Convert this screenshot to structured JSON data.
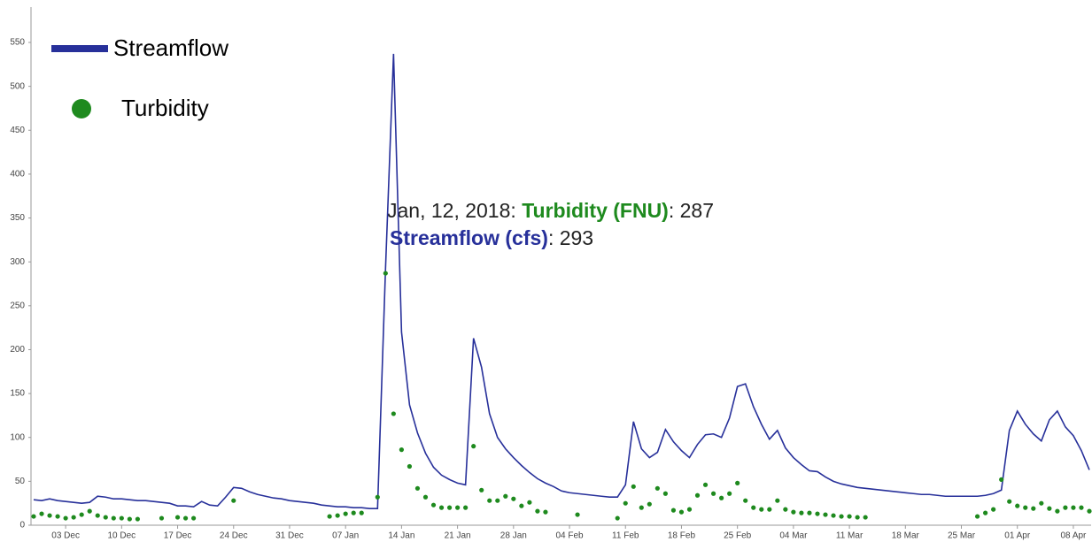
{
  "chart_data": {
    "type": "line",
    "x": [
      "2017-11-29",
      "2017-11-30",
      "2017-12-01",
      "2017-12-02",
      "2017-12-03",
      "2017-12-04",
      "2017-12-05",
      "2017-12-06",
      "2017-12-07",
      "2017-12-08",
      "2017-12-09",
      "2017-12-10",
      "2017-12-11",
      "2017-12-12",
      "2017-12-13",
      "2017-12-14",
      "2017-12-15",
      "2017-12-16",
      "2017-12-17",
      "2017-12-18",
      "2017-12-19",
      "2017-12-20",
      "2017-12-21",
      "2017-12-22",
      "2017-12-23",
      "2017-12-24",
      "2017-12-25",
      "2017-12-26",
      "2017-12-27",
      "2017-12-28",
      "2017-12-29",
      "2017-12-30",
      "2017-12-31",
      "2018-01-01",
      "2018-01-02",
      "2018-01-03",
      "2018-01-04",
      "2018-01-05",
      "2018-01-06",
      "2018-01-07",
      "2018-01-08",
      "2018-01-09",
      "2018-01-10",
      "2018-01-11",
      "2018-01-12",
      "2018-01-13",
      "2018-01-14",
      "2018-01-15",
      "2018-01-16",
      "2018-01-17",
      "2018-01-18",
      "2018-01-19",
      "2018-01-20",
      "2018-01-21",
      "2018-01-22",
      "2018-01-23",
      "2018-01-24",
      "2018-01-25",
      "2018-01-26",
      "2018-01-27",
      "2018-01-28",
      "2018-01-29",
      "2018-01-30",
      "2018-01-31",
      "2018-02-01",
      "2018-02-02",
      "2018-02-03",
      "2018-02-04",
      "2018-02-05",
      "2018-02-06",
      "2018-02-07",
      "2018-02-08",
      "2018-02-09",
      "2018-02-10",
      "2018-02-11",
      "2018-02-12",
      "2018-02-13",
      "2018-02-14",
      "2018-02-15",
      "2018-02-16",
      "2018-02-17",
      "2018-02-18",
      "2018-02-19",
      "2018-02-20",
      "2018-02-21",
      "2018-02-22",
      "2018-02-23",
      "2018-02-24",
      "2018-02-25",
      "2018-02-26",
      "2018-02-27",
      "2018-02-28",
      "2018-03-01",
      "2018-03-02",
      "2018-03-03",
      "2018-03-04",
      "2018-03-05",
      "2018-03-06",
      "2018-03-07",
      "2018-03-08",
      "2018-03-09",
      "2018-03-10",
      "2018-03-11",
      "2018-03-12",
      "2018-03-13",
      "2018-03-14",
      "2018-03-15",
      "2018-03-16",
      "2018-03-17",
      "2018-03-18",
      "2018-03-19",
      "2018-03-20",
      "2018-03-21",
      "2018-03-22",
      "2018-03-23",
      "2018-03-24",
      "2018-03-25",
      "2018-03-26",
      "2018-03-27",
      "2018-03-28",
      "2018-03-29",
      "2018-03-30",
      "2018-03-31",
      "2018-04-01",
      "2018-04-02",
      "2018-04-03",
      "2018-04-04",
      "2018-04-05",
      "2018-04-06",
      "2018-04-07",
      "2018-04-08",
      "2018-04-09",
      "2018-04-10"
    ],
    "series": [
      {
        "name": "Streamflow",
        "color": "#27309a",
        "style": "line",
        "values": [
          29,
          28,
          30,
          28,
          27,
          26,
          25,
          26,
          33,
          32,
          30,
          30,
          29,
          28,
          28,
          27,
          26,
          25,
          22,
          22,
          21,
          27,
          23,
          22,
          32,
          43,
          42,
          38,
          35,
          33,
          31,
          30,
          28,
          27,
          26,
          25,
          23,
          22,
          21,
          21,
          20,
          20,
          19,
          19,
          293,
          537,
          220,
          137,
          105,
          82,
          66,
          57,
          52,
          48,
          46,
          213,
          180,
          127,
          100,
          87,
          77,
          68,
          60,
          53,
          48,
          44,
          39,
          37,
          36,
          35,
          34,
          33,
          32,
          32,
          46,
          118,
          87,
          77,
          83,
          109,
          95,
          85,
          77,
          92,
          103,
          104,
          100,
          122,
          158,
          161,
          135,
          115,
          98,
          108,
          88,
          77,
          69,
          62,
          61,
          55,
          50,
          47,
          45,
          43,
          42,
          41,
          40,
          39,
          38,
          37,
          36,
          35,
          35,
          34,
          33,
          33,
          33,
          33,
          33,
          34,
          36,
          40,
          108,
          130,
          115,
          104,
          96,
          120,
          130,
          112,
          102,
          85,
          63
        ]
      },
      {
        "name": "Turbidity",
        "color": "#1e8a1e",
        "style": "markers",
        "values": [
          10,
          13,
          11,
          10,
          8,
          9,
          12,
          16,
          11,
          9,
          8,
          8,
          7,
          7,
          null,
          null,
          8,
          null,
          9,
          8,
          8,
          null,
          null,
          null,
          null,
          28,
          null,
          null,
          null,
          null,
          null,
          null,
          null,
          null,
          null,
          null,
          null,
          10,
          11,
          13,
          14,
          14,
          null,
          32,
          287,
          127,
          86,
          67,
          42,
          32,
          23,
          20,
          20,
          20,
          20,
          90,
          40,
          28,
          28,
          33,
          30,
          22,
          26,
          16,
          15,
          null,
          null,
          null,
          12,
          null,
          null,
          null,
          null,
          8,
          25,
          44,
          20,
          24,
          42,
          36,
          17,
          15,
          18,
          34,
          46,
          36,
          31,
          36,
          48,
          28,
          20,
          18,
          18,
          28,
          18,
          15,
          14,
          14,
          13,
          12,
          11,
          10,
          10,
          9,
          9,
          null,
          null,
          null,
          null,
          null,
          null,
          null,
          null,
          null,
          null,
          null,
          null,
          null,
          10,
          14,
          18,
          52,
          27,
          22,
          20,
          19,
          25,
          19,
          16,
          20,
          20,
          20,
          16
        ]
      }
    ],
    "xlim": [
      "2017-11-29",
      "2018-04-10"
    ],
    "xticks": [
      {
        "value": "2017-12-03",
        "label": "03 Dec"
      },
      {
        "value": "2017-12-10",
        "label": "10 Dec"
      },
      {
        "value": "2017-12-17",
        "label": "17 Dec"
      },
      {
        "value": "2017-12-24",
        "label": "24 Dec"
      },
      {
        "value": "2017-12-31",
        "label": "31 Dec"
      },
      {
        "value": "2018-01-07",
        "label": "07 Jan"
      },
      {
        "value": "2018-01-14",
        "label": "14 Jan"
      },
      {
        "value": "2018-01-21",
        "label": "21 Jan"
      },
      {
        "value": "2018-01-28",
        "label": "28 Jan"
      },
      {
        "value": "2018-02-04",
        "label": "04 Feb"
      },
      {
        "value": "2018-02-11",
        "label": "11 Feb"
      },
      {
        "value": "2018-02-18",
        "label": "18 Feb"
      },
      {
        "value": "2018-02-25",
        "label": "25 Feb"
      },
      {
        "value": "2018-03-04",
        "label": "04 Mar"
      },
      {
        "value": "2018-03-11",
        "label": "11 Mar"
      },
      {
        "value": "2018-03-18",
        "label": "18 Mar"
      },
      {
        "value": "2018-03-25",
        "label": "25 Mar"
      },
      {
        "value": "2018-04-01",
        "label": "01 Apr"
      },
      {
        "value": "2018-04-08",
        "label": "08 Apr"
      }
    ],
    "ylim": [
      0,
      550
    ],
    "yticks": [
      0,
      50,
      100,
      150,
      200,
      250,
      300,
      350,
      400,
      450,
      500,
      550
    ],
    "legend": "top-left",
    "annotation": {
      "date": "Jan, 12, 2018:",
      "turbidity_label": "Turbidity (FNU)",
      "streamflow_label": "Streamflow (cfs)",
      "separator": ":",
      "index": 43
    }
  }
}
